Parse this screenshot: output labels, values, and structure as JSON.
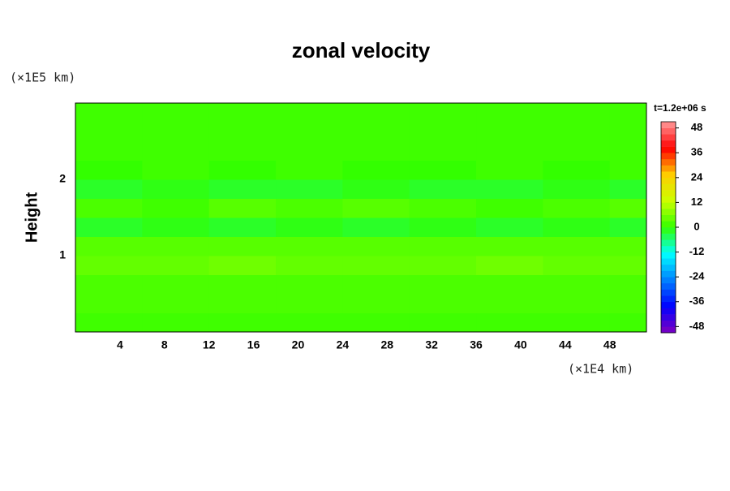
{
  "chart_data": {
    "type": "heatmap",
    "title": "zonal velocity",
    "subtitle": "t=1.2e+06 s",
    "y_label": "Height",
    "y_unit": "(×1E5 km)",
    "x_unit": "(×1E4 km)",
    "x_edges": [
      0,
      6,
      12,
      18,
      24,
      30,
      36,
      42,
      48,
      51.3
    ],
    "y_edges": [
      0,
      0.25,
      0.5,
      0.75,
      1.0,
      1.25,
      1.5,
      1.75,
      2.0,
      2.25,
      2.5,
      2.75,
      3.0
    ],
    "z": [
      [
        1,
        1,
        1,
        1,
        1,
        1,
        1,
        1,
        1
      ],
      [
        2,
        2,
        2,
        2,
        2,
        2,
        2,
        2,
        2
      ],
      [
        2,
        2,
        2,
        2,
        2,
        2,
        2,
        2,
        2
      ],
      [
        4,
        4,
        5,
        4,
        4,
        4,
        5,
        4,
        4
      ],
      [
        3,
        3,
        3,
        3,
        3,
        3,
        3,
        3,
        3
      ],
      [
        -2,
        -1,
        -2,
        -1,
        -2,
        -1,
        -2,
        -1,
        -2
      ],
      [
        2,
        1,
        3,
        2,
        3,
        2,
        1,
        2,
        3
      ],
      [
        -2,
        -1,
        -2,
        -2,
        -1,
        -2,
        -2,
        -1,
        -2
      ],
      [
        0,
        1,
        0,
        1,
        0,
        0,
        1,
        0,
        1
      ],
      [
        1,
        1,
        1,
        1,
        1,
        1,
        1,
        1,
        1
      ],
      [
        1,
        1,
        1,
        1,
        1,
        1,
        1,
        1,
        1
      ],
      [
        1,
        1,
        1,
        1,
        1,
        1,
        1,
        1,
        1
      ]
    ],
    "xlim": [
      0,
      51.3
    ],
    "ylim": [
      0,
      3.0
    ],
    "xticks": [
      4,
      8,
      12,
      16,
      20,
      24,
      28,
      32,
      36,
      40,
      44,
      48
    ],
    "yticks": [
      1,
      2
    ],
    "clim": [
      -51,
      51
    ],
    "cticks": [
      -48,
      -36,
      -24,
      -12,
      0,
      12,
      24,
      36,
      48
    ],
    "colors": [
      "#8000c0",
      "#0000ff",
      "#0080ff",
      "#00ffff",
      "#33ff00",
      "#ccff00",
      "#ffcc00",
      "#ff0000",
      "#ff9999"
    ]
  }
}
